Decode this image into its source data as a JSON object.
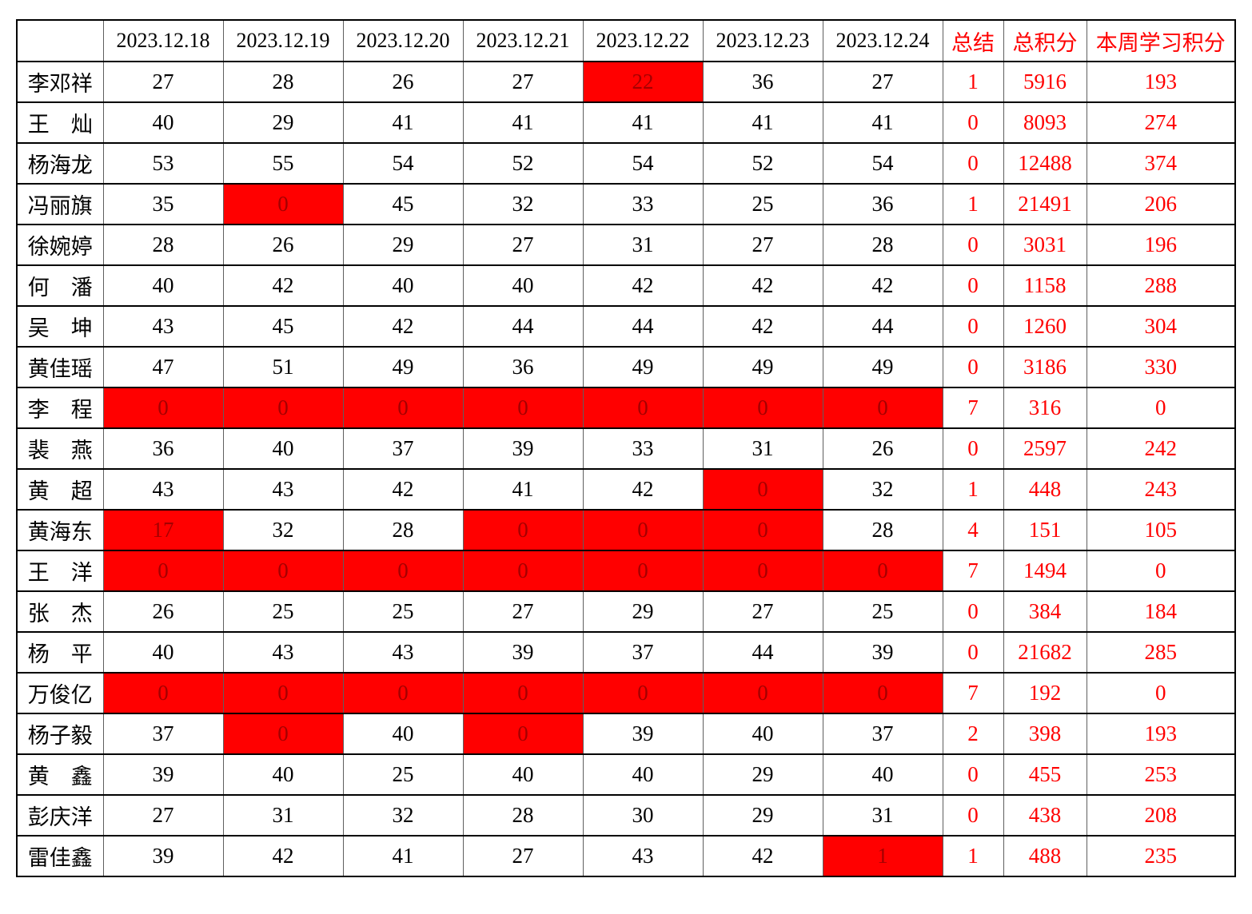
{
  "page": {
    "background": "#ffffff"
  },
  "colors": {
    "highlight_bg": "#ff0000",
    "highlight_text": "#a40000",
    "accent_text": "#ff0000",
    "body_text": "#000000",
    "grid_vertical": "#5f5f5f",
    "grid_horizontal": "#000000"
  },
  "table": {
    "corner_label": "",
    "date_headers": [
      "2023.12.18",
      "2023.12.19",
      "2023.12.20",
      "2023.12.21",
      "2023.12.22",
      "2023.12.23",
      "2023.12.24"
    ],
    "summary_headers": [
      "总结",
      "总积分",
      "本周学习积分"
    ],
    "rows": [
      {
        "name": "李邓祥",
        "scores": [
          27,
          28,
          26,
          27,
          22,
          36,
          27
        ],
        "red_cells": [
          4
        ],
        "summary": 1,
        "total": 5916,
        "week": 193
      },
      {
        "name": "王　灿",
        "scores": [
          40,
          29,
          41,
          41,
          41,
          41,
          41
        ],
        "red_cells": [],
        "summary": 0,
        "total": 8093,
        "week": 274
      },
      {
        "name": "杨海龙",
        "scores": [
          53,
          55,
          54,
          52,
          54,
          52,
          54
        ],
        "red_cells": [],
        "summary": 0,
        "total": 12488,
        "week": 374
      },
      {
        "name": "冯丽旗",
        "scores": [
          35,
          0,
          45,
          32,
          33,
          25,
          36
        ],
        "red_cells": [
          1
        ],
        "summary": 1,
        "total": 21491,
        "week": 206
      },
      {
        "name": "徐婉婷",
        "scores": [
          28,
          26,
          29,
          27,
          31,
          27,
          28
        ],
        "red_cells": [],
        "summary": 0,
        "total": 3031,
        "week": 196
      },
      {
        "name": "何　潘",
        "scores": [
          40,
          42,
          40,
          40,
          42,
          42,
          42
        ],
        "red_cells": [],
        "summary": 0,
        "total": 1158,
        "week": 288
      },
      {
        "name": "吴　坤",
        "scores": [
          43,
          45,
          42,
          44,
          44,
          42,
          44
        ],
        "red_cells": [],
        "summary": 0,
        "total": 1260,
        "week": 304
      },
      {
        "name": "黄佳瑶",
        "scores": [
          47,
          51,
          49,
          36,
          49,
          49,
          49
        ],
        "red_cells": [],
        "summary": 0,
        "total": 3186,
        "week": 330
      },
      {
        "name": "李　程",
        "scores": [
          0,
          0,
          0,
          0,
          0,
          0,
          0
        ],
        "red_cells": [
          0,
          1,
          2,
          3,
          4,
          5,
          6
        ],
        "summary": 7,
        "total": 316,
        "week": 0
      },
      {
        "name": "裴　燕",
        "scores": [
          36,
          40,
          37,
          39,
          33,
          31,
          26
        ],
        "red_cells": [],
        "summary": 0,
        "total": 2597,
        "week": 242
      },
      {
        "name": "黄　超",
        "scores": [
          43,
          43,
          42,
          41,
          42,
          0,
          32
        ],
        "red_cells": [
          5
        ],
        "summary": 1,
        "total": 448,
        "week": 243
      },
      {
        "name": "黄海东",
        "scores": [
          17,
          32,
          28,
          0,
          0,
          0,
          28
        ],
        "red_cells": [
          0,
          3,
          4,
          5
        ],
        "summary": 4,
        "total": 151,
        "week": 105
      },
      {
        "name": "王　洋",
        "scores": [
          0,
          0,
          0,
          0,
          0,
          0,
          0
        ],
        "red_cells": [
          0,
          1,
          2,
          3,
          4,
          5,
          6
        ],
        "summary": 7,
        "total": 1494,
        "week": 0
      },
      {
        "name": "张　杰",
        "scores": [
          26,
          25,
          25,
          27,
          29,
          27,
          25
        ],
        "red_cells": [],
        "summary": 0,
        "total": 384,
        "week": 184
      },
      {
        "name": "杨　平",
        "scores": [
          40,
          43,
          43,
          39,
          37,
          44,
          39
        ],
        "red_cells": [],
        "summary": 0,
        "total": 21682,
        "week": 285
      },
      {
        "name": "万俊亿",
        "scores": [
          0,
          0,
          0,
          0,
          0,
          0,
          0
        ],
        "red_cells": [
          0,
          1,
          2,
          3,
          4,
          5,
          6
        ],
        "summary": 7,
        "total": 192,
        "week": 0
      },
      {
        "name": "杨子毅",
        "scores": [
          37,
          0,
          40,
          0,
          39,
          40,
          37
        ],
        "red_cells": [
          1,
          3
        ],
        "summary": 2,
        "total": 398,
        "week": 193
      },
      {
        "name": "黄　鑫",
        "scores": [
          39,
          40,
          25,
          40,
          40,
          29,
          40
        ],
        "red_cells": [],
        "summary": 0,
        "total": 455,
        "week": 253
      },
      {
        "name": "彭庆洋",
        "scores": [
          27,
          31,
          32,
          28,
          30,
          29,
          31
        ],
        "red_cells": [],
        "summary": 0,
        "total": 438,
        "week": 208
      },
      {
        "name": "雷佳鑫",
        "scores": [
          39,
          42,
          41,
          27,
          43,
          42,
          1
        ],
        "red_cells": [
          6
        ],
        "summary": 1,
        "total": 488,
        "week": 235
      }
    ]
  }
}
